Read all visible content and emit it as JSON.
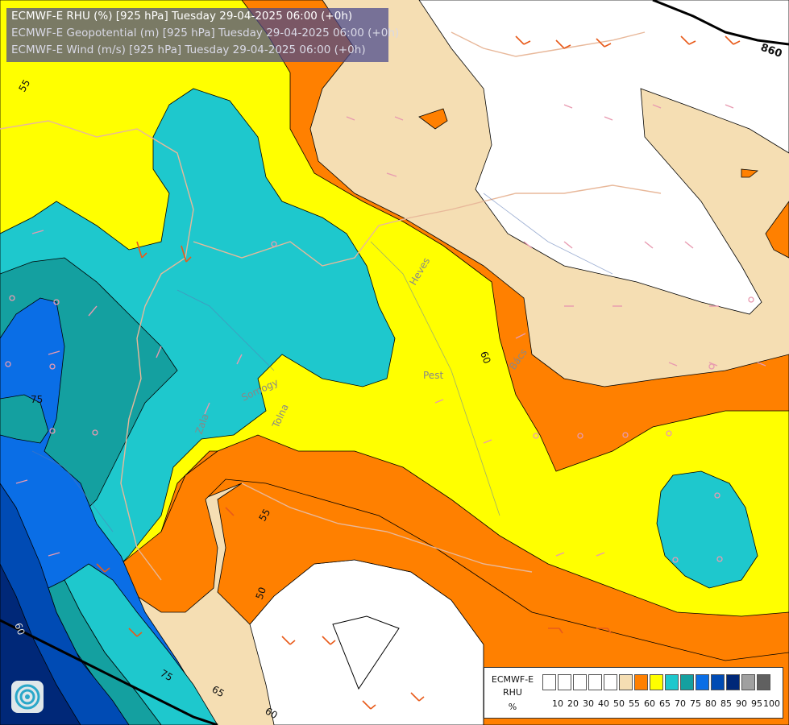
{
  "header": {
    "line1": "ECMWF-E RHU (%) [925 hPa] Tuesday 29-04-2025 06:00 (+0h)",
    "line2": "ECMWF-E Geopotential (m) [925 hPa] Tuesday 29-04-2025 06:00 (+0h)",
    "line3": "ECMWF-E Wind (m/s) [925 hPa] Tuesday 29-04-2025 06:00 (+0h)"
  },
  "colors": {
    "c50": "#ffffff",
    "c55": "#f5deb3",
    "c60": "#ff8000",
    "c65": "#ffff00",
    "c70": "#1ec8cd",
    "c75": "#14a0a0",
    "c80": "#0a6ee6",
    "c85": "#004bb4",
    "c90": "#002878",
    "c95": "#a0a0a0",
    "c100": "#606060"
  },
  "contour_labels": [
    "55",
    "75",
    "60",
    "55",
    "50",
    "75",
    "65",
    "60",
    "60",
    "860"
  ],
  "place_labels": [
    "Pest",
    "Bács",
    "Heves",
    "Tolna",
    "Somogy",
    "Zala"
  ],
  "legend": {
    "title_line1": "ECMWF-E",
    "title_line2": "RHU",
    "unit": "%",
    "ticks": [
      "10",
      "20",
      "30",
      "40",
      "50",
      "55",
      "60",
      "65",
      "70",
      "75",
      "80",
      "85",
      "90",
      "95",
      "100"
    ],
    "swatch_colors": [
      "#ffffff",
      "#ffffff",
      "#ffffff",
      "#ffffff",
      "#ffffff",
      "#f5deb3",
      "#ff8000",
      "#ffff00",
      "#1ec8cd",
      "#14a0a0",
      "#0a6ee6",
      "#004bb4",
      "#002878",
      "#a0a0a0",
      "#606060"
    ]
  }
}
